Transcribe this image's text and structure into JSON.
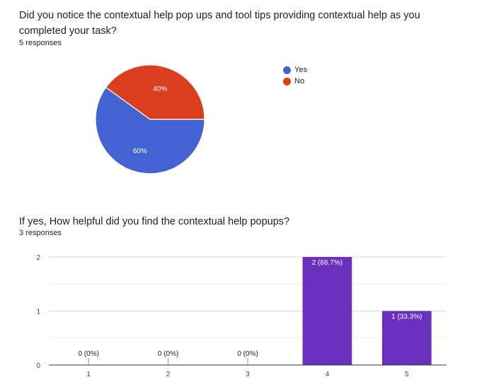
{
  "question1": {
    "title": "Did you notice the contextual help pop ups and tool tips providing contextual help as you completed your task?",
    "responses": "5 responses"
  },
  "question2": {
    "title": "If yes, How helpful did you find the contextual help popups?",
    "responses": "3 responses"
  },
  "chart_data": [
    {
      "type": "pie",
      "labels": [
        "Yes",
        "No"
      ],
      "values": [
        60,
        40
      ],
      "value_labels": [
        "60%",
        "40%"
      ],
      "colors": [
        "#4363d2",
        "#db3e1d"
      ],
      "legend": "right"
    },
    {
      "type": "bar",
      "categories": [
        "1",
        "2",
        "3",
        "4",
        "5"
      ],
      "values": [
        0,
        0,
        0,
        2,
        1
      ],
      "value_labels": [
        "0 (0%)",
        "0 (0%)",
        "0 (0%)",
        "2 (66.7%)",
        "1 (33.3%)"
      ],
      "ylim": [
        0,
        2
      ],
      "yticks": [
        0,
        1,
        2
      ],
      "color": "#6a2fbd",
      "grid": true
    }
  ]
}
